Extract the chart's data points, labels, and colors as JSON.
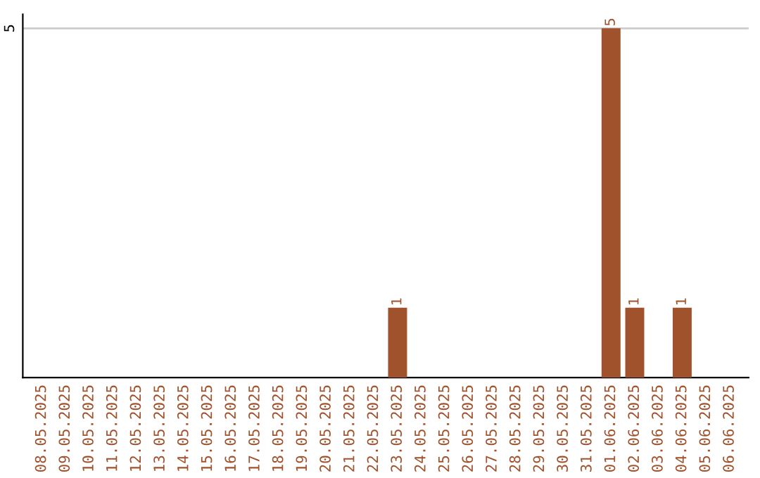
{
  "chart_data": {
    "type": "bar",
    "categories": [
      "08.05.2025",
      "09.05.2025",
      "10.05.2025",
      "11.05.2025",
      "12.05.2025",
      "13.05.2025",
      "14.05.2025",
      "15.05.2025",
      "16.05.2025",
      "17.05.2025",
      "18.05.2025",
      "19.05.2025",
      "20.05.2025",
      "21.05.2025",
      "22.05.2025",
      "23.05.2025",
      "24.05.2025",
      "25.05.2025",
      "26.05.2025",
      "27.05.2025",
      "28.05.2025",
      "29.05.2025",
      "30.05.2025",
      "31.05.2025",
      "01.06.2025",
      "02.06.2025",
      "03.06.2025",
      "04.06.2025",
      "05.06.2025",
      "06.06.2025"
    ],
    "values": [
      null,
      null,
      null,
      null,
      null,
      null,
      null,
      null,
      null,
      null,
      null,
      null,
      null,
      null,
      null,
      1,
      null,
      null,
      null,
      null,
      null,
      null,
      null,
      null,
      5,
      1,
      null,
      1,
      null,
      null
    ],
    "value_labels": [
      null,
      null,
      null,
      null,
      null,
      null,
      null,
      null,
      null,
      null,
      null,
      null,
      null,
      null,
      null,
      "1",
      null,
      null,
      null,
      null,
      null,
      null,
      null,
      null,
      "5",
      "1",
      null,
      "1",
      null,
      null
    ],
    "color": "#a0522d",
    "ylim": [
      0,
      5.2
    ],
    "ref_lines": [
      {
        "axis": "y",
        "value": 5,
        "label": "5",
        "color": "#cccccc"
      }
    ],
    "legend": false
  }
}
